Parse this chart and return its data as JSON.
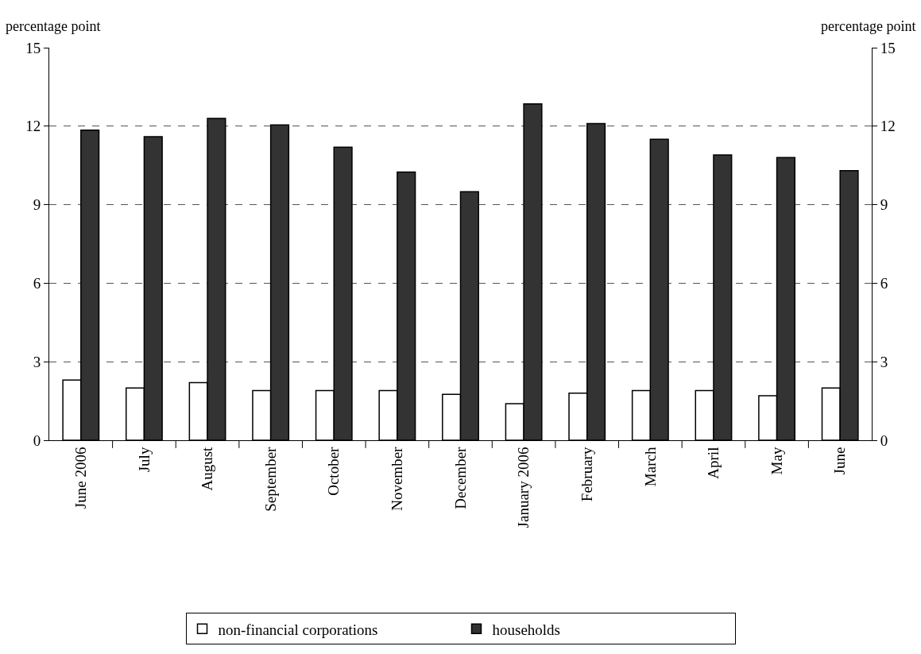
{
  "chart_data": {
    "type": "bar",
    "ylabel": "percentage point",
    "y2label": "percentage point",
    "categories": [
      "June 2006",
      "July",
      "August",
      "September",
      "October",
      "November",
      "December",
      "January 2006",
      "February",
      "March",
      "April",
      "May",
      "June"
    ],
    "series": [
      {
        "name": "non-financial corporations",
        "color": "#ffffff",
        "values": [
          2.3,
          2.0,
          2.2,
          1.9,
          1.9,
          1.9,
          1.75,
          1.4,
          1.8,
          1.9,
          1.9,
          1.7,
          2.0
        ]
      },
      {
        "name": "households",
        "color": "#333333",
        "values": [
          11.85,
          11.6,
          12.3,
          12.05,
          11.2,
          10.25,
          9.5,
          12.85,
          12.1,
          11.5,
          10.9,
          10.8,
          10.3
        ]
      }
    ],
    "ylim": [
      0,
      15
    ],
    "yticks": [
      0,
      3,
      6,
      9,
      12,
      15
    ],
    "y2lim": [
      0,
      15
    ],
    "y2ticks": [
      0,
      3,
      6,
      9,
      12,
      15
    ],
    "grid": "y",
    "legend": "bottom"
  }
}
